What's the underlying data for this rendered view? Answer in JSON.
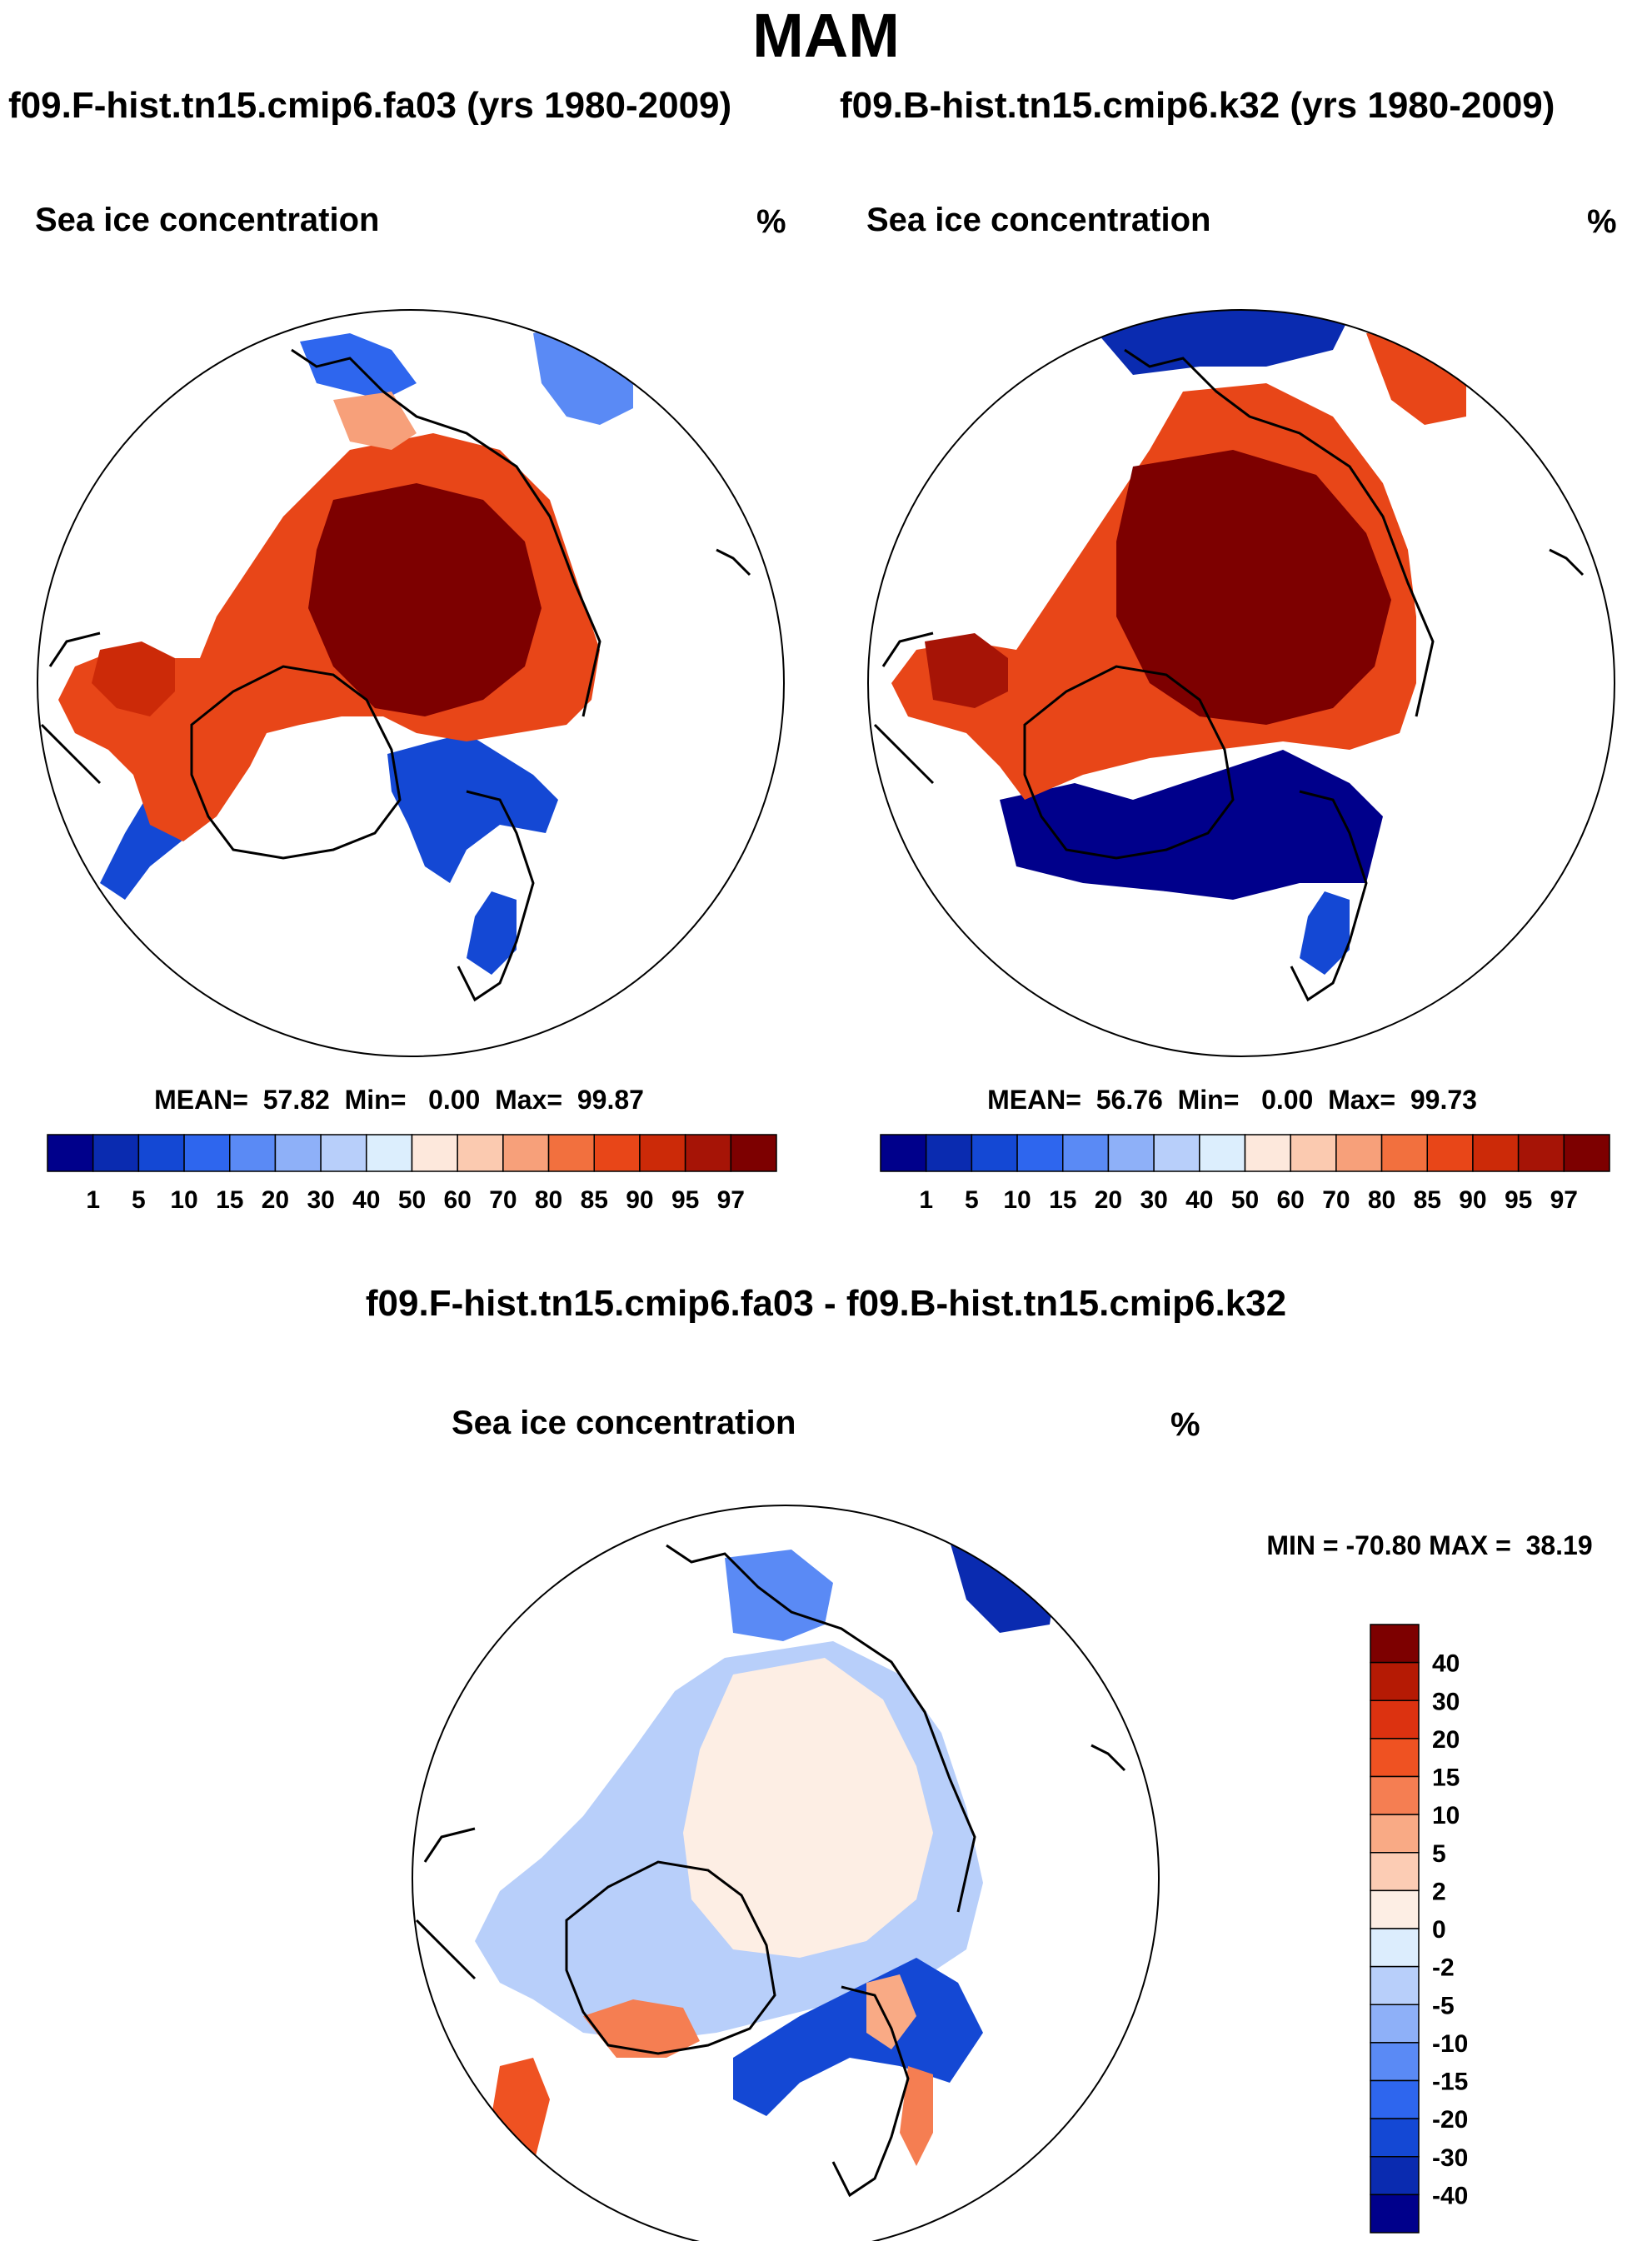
{
  "header": {
    "season": "MAM",
    "case1_title": "f09.F-hist.tn15.cmip6.fa03 (yrs 1980-2009)",
    "case2_title": "f09.B-hist.tn15.cmip6.k32 (yrs 1980-2009)",
    "diff_title": "f09.F-hist.tn15.cmip6.fa03 - f09.B-hist.tn15.cmip6.k32"
  },
  "panels": [
    {
      "title": "Sea ice concentration",
      "units": "%",
      "stats": "MEAN=  57.82  Min=   0.00  Max=  99.87"
    },
    {
      "title": "Sea ice concentration",
      "units": "%",
      "stats": "MEAN=  56.76  Min=   0.00  Max=  99.73"
    },
    {
      "title": "Sea ice concentration",
      "units": "%",
      "stats": "MIN = -70.80 MAX =  38.19"
    }
  ],
  "chart_data": [
    {
      "type": "heatmap",
      "projection": "north polar stereographic",
      "title": "Sea ice concentration",
      "units": "%",
      "case": "f09.F-hist.tn15.cmip6.fa03 (yrs 1980-2009)",
      "mean": 57.82,
      "min": 0.0,
      "max": 99.87,
      "colorbar_levels": [
        1,
        5,
        10,
        15,
        20,
        30,
        40,
        50,
        60,
        70,
        80,
        85,
        90,
        95,
        97
      ],
      "colorbar_labels": [
        "1",
        "5",
        "10",
        "15",
        "20",
        "30",
        "40",
        "50",
        "60",
        "70",
        "80",
        "85",
        "90",
        "95",
        "97"
      ],
      "colors": [
        "#00008b",
        "#0a2bb0",
        "#1448d4",
        "#2e66ee",
        "#5a8af5",
        "#8eb0f8",
        "#b8cffa",
        "#dceefd",
        "#fde8dc",
        "#fbcab0",
        "#f7a07a",
        "#f2703e",
        "#e84618",
        "#cc2a08",
        "#a61406",
        "#7d0000"
      ]
    },
    {
      "type": "heatmap",
      "projection": "north polar stereographic",
      "title": "Sea ice concentration",
      "units": "%",
      "case": "f09.B-hist.tn15.cmip6.k32 (yrs 1980-2009)",
      "mean": 56.76,
      "min": 0.0,
      "max": 99.73,
      "colorbar_levels": [
        1,
        5,
        10,
        15,
        20,
        30,
        40,
        50,
        60,
        70,
        80,
        85,
        90,
        95,
        97
      ],
      "colorbar_labels": [
        "1",
        "5",
        "10",
        "15",
        "20",
        "30",
        "40",
        "50",
        "60",
        "70",
        "80",
        "85",
        "90",
        "95",
        "97"
      ],
      "colors": [
        "#00008b",
        "#0a2bb0",
        "#1448d4",
        "#2e66ee",
        "#5a8af5",
        "#8eb0f8",
        "#b8cffa",
        "#dceefd",
        "#fde8dc",
        "#fbcab0",
        "#f7a07a",
        "#f2703e",
        "#e84618",
        "#cc2a08",
        "#a61406",
        "#7d0000"
      ]
    },
    {
      "type": "heatmap",
      "projection": "north polar stereographic",
      "title": "Sea ice concentration",
      "units": "%",
      "case": "f09.F-hist.tn15.cmip6.fa03 - f09.B-hist.tn15.cmip6.k32",
      "min": -70.8,
      "max": 38.19,
      "colorbar_levels": [
        40,
        30,
        20,
        15,
        10,
        5,
        2,
        0,
        -2,
        -5,
        -10,
        -15,
        -20,
        -30,
        -40
      ],
      "colorbar_labels": [
        "40",
        "30",
        "20",
        "15",
        "10",
        "5",
        "2",
        "0",
        "-2",
        "-5",
        "-10",
        "-15",
        "-20",
        "-30",
        "-40"
      ],
      "colors": [
        "#7d0000",
        "#b51a04",
        "#dc3210",
        "#ef5222",
        "#f57e52",
        "#f9aa85",
        "#fcccb4",
        "#fdeee4",
        "#dcedfd",
        "#b8cffa",
        "#8eb0f8",
        "#5a8af5",
        "#2e66ee",
        "#1448d4",
        "#0a2bb0",
        "#00008b"
      ]
    }
  ]
}
